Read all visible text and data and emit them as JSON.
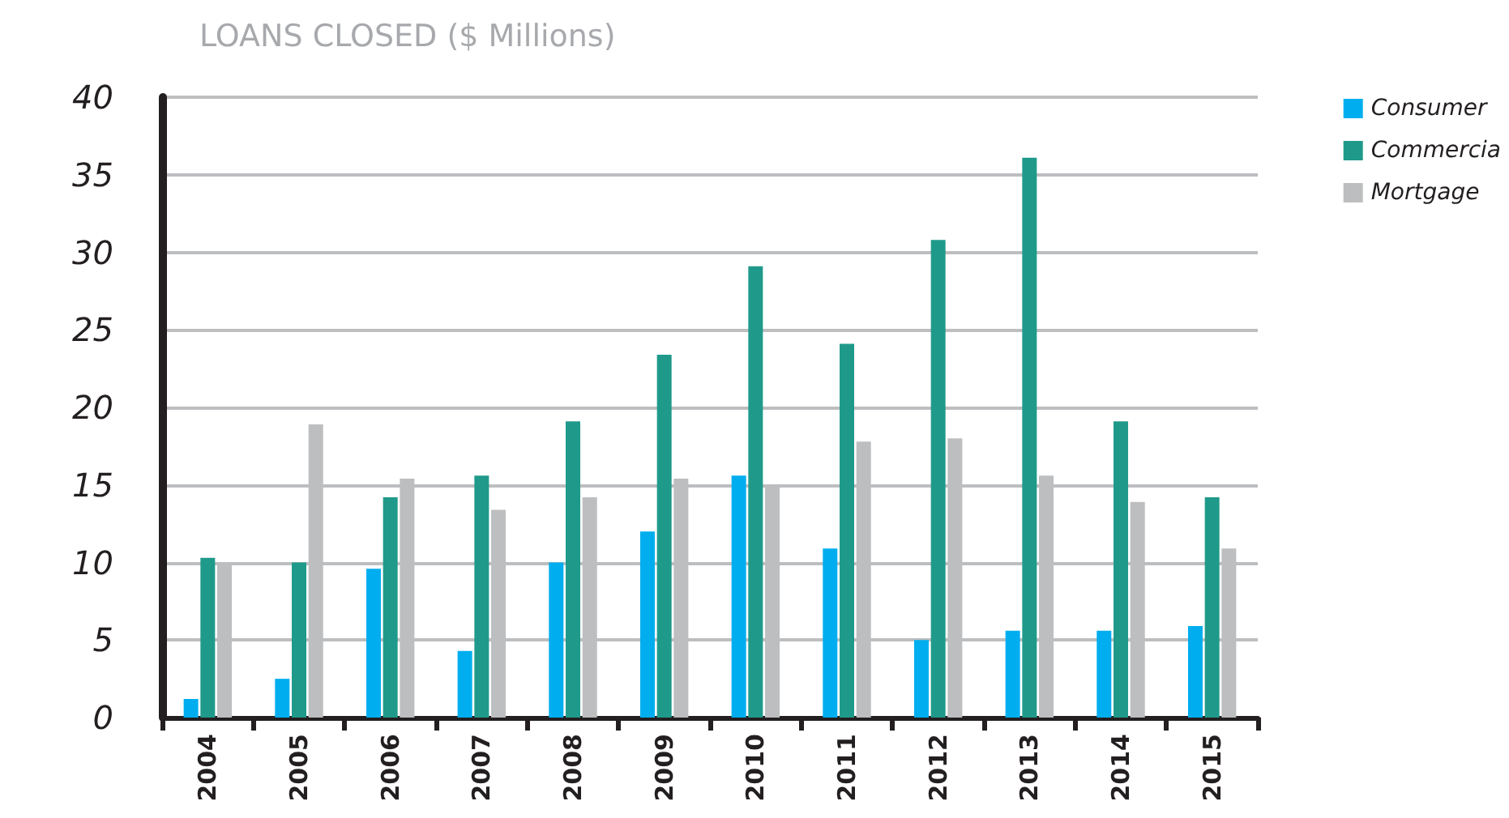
{
  "chart_data": {
    "type": "bar",
    "title": "LOANS CLOSED ($ Millions)",
    "categories": [
      "2004",
      "2005",
      "2006",
      "2007",
      "2008",
      "2009",
      "2010",
      "2011",
      "2012",
      "2013",
      "2014",
      "2015"
    ],
    "series": [
      {
        "name": "Consumer",
        "color": "#00aeef",
        "values": [
          1.2,
          2.5,
          9.6,
          4.3,
          10,
          12,
          15.6,
          10.9,
          5,
          5.6,
          5.6,
          5.9
        ]
      },
      {
        "name": "Commercia",
        "color": "#1f9a8a",
        "values": [
          10.3,
          10,
          14.2,
          15.6,
          19.1,
          23.4,
          29.1,
          24.1,
          30.8,
          36.1,
          19.1,
          14.2
        ]
      },
      {
        "name": "Mortgage",
        "color": "#bcbec0",
        "values": [
          10,
          18.9,
          15.4,
          13.4,
          14.2,
          15.4,
          15,
          17.8,
          18,
          15.6,
          13.9,
          10.9
        ]
      }
    ],
    "ylim": [
      0,
      40
    ],
    "yticks": [
      0,
      5,
      10,
      15,
      20,
      25,
      30,
      35,
      40
    ],
    "grid": "y",
    "legend": "top right"
  }
}
